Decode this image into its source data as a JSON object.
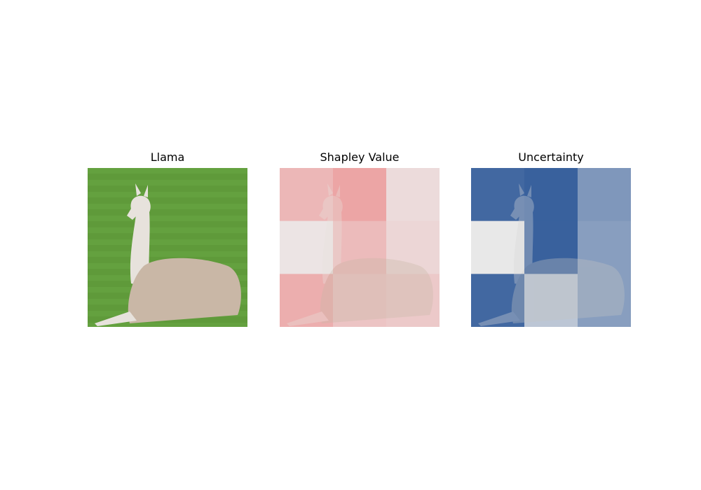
{
  "panels": [
    {
      "title": "Llama"
    },
    {
      "title": "Shapley Value"
    },
    {
      "title": "Uncertainty"
    }
  ],
  "chart_data": [
    {
      "type": "heatmap",
      "title": "Shapley Value",
      "grid": [
        3,
        3
      ],
      "colormap": "red-white",
      "values": [
        [
          0.55,
          0.75,
          0.15
        ],
        [
          0.05,
          0.5,
          0.2
        ],
        [
          0.65,
          0.4,
          0.35
        ]
      ]
    },
    {
      "type": "heatmap",
      "title": "Uncertainty",
      "grid": [
        3,
        3
      ],
      "colormap": "white-blue",
      "values": [
        [
          0.95,
          1.0,
          0.6
        ],
        [
          0.0,
          1.0,
          0.55
        ],
        [
          0.95,
          0.25,
          0.55
        ]
      ]
    }
  ]
}
